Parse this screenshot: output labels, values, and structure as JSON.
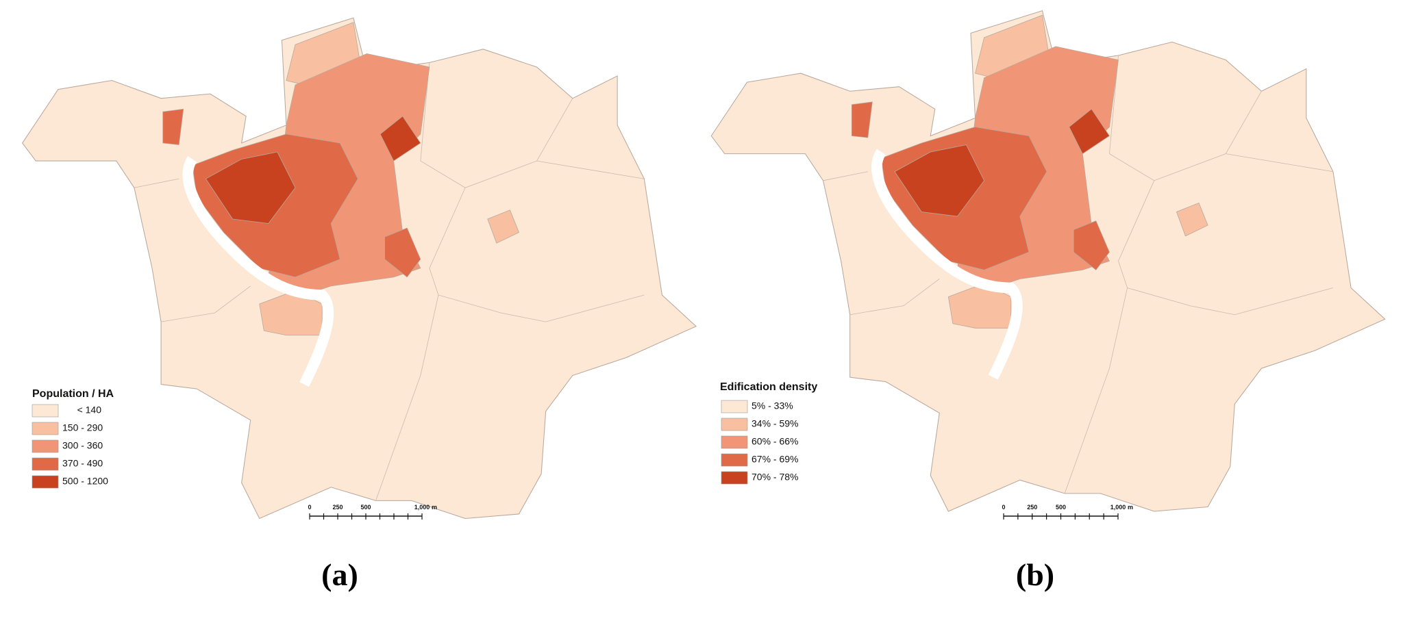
{
  "panels": [
    {
      "label": "(a)",
      "legend": {
        "title": "Population / HA",
        "items": [
          {
            "label": "< 140",
            "color": "#fde8d6"
          },
          {
            "label": "150 - 290",
            "color": "#f8bfa0"
          },
          {
            "label": "300 - 360",
            "color": "#f09676"
          },
          {
            "label": "370 - 490",
            "color": "#e06a47"
          },
          {
            "label": "500 - 1200",
            "color": "#c9421f"
          }
        ]
      },
      "scale_bar": {
        "ticks": [
          0,
          250,
          500,
          {
            "value": 1000,
            "label": "1,000"
          }
        ],
        "unit": "m"
      }
    },
    {
      "label": "(b)",
      "legend": {
        "title": "Edification density",
        "items": [
          {
            "label": "5% - 33%",
            "color": "#fde8d6"
          },
          {
            "label": "34% - 59%",
            "color": "#f8bfa0"
          },
          {
            "label": "60% - 66%",
            "color": "#f09676"
          },
          {
            "label": "67% - 69%",
            "color": "#e06a47"
          },
          {
            "label": "70% - 78%",
            "color": "#c9421f"
          }
        ]
      },
      "scale_bar": {
        "ticks": [
          0,
          250,
          500,
          {
            "value": 1000,
            "label": "1,000"
          }
        ],
        "unit": "m"
      }
    }
  ]
}
